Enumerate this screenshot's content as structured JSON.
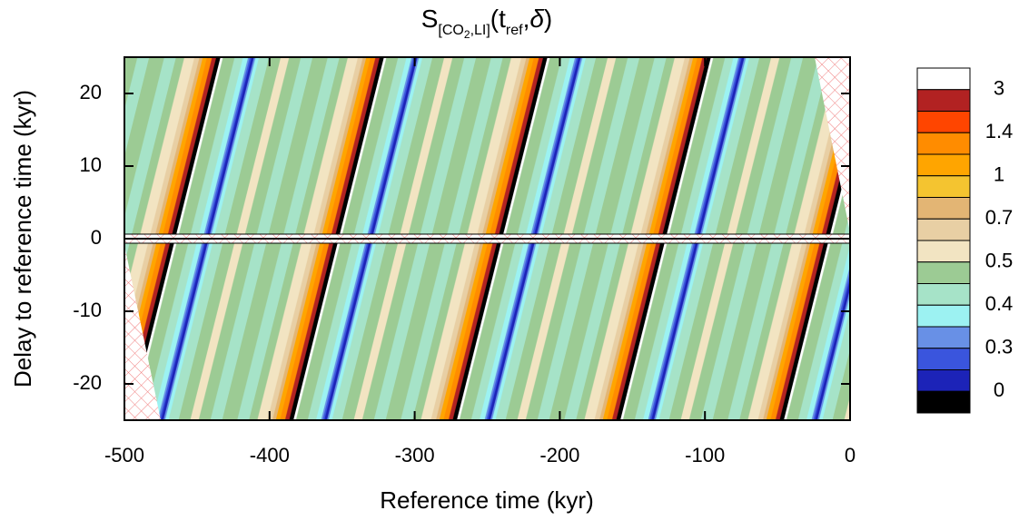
{
  "chart_data": {
    "type": "contour",
    "title": [
      "S",
      "[CO",
      "2",
      ",LI]",
      "(t",
      "ref",
      ",",
      "δ",
      ")"
    ],
    "x_label": "Reference time (kyr)",
    "y_label": "Delay to reference time (kyr)",
    "xlim": [
      -500,
      0
    ],
    "xticks": [
      -500,
      -400,
      -300,
      -200,
      -100,
      0
    ],
    "ylim": [
      -25,
      25
    ],
    "yticks": [
      -20,
      -10,
      0,
      10,
      20
    ],
    "colorbar": {
      "levels": [
        3,
        1.4,
        1,
        0.7,
        0.5,
        0.4,
        0.3,
        0
      ],
      "colors": [
        "#ffffff",
        "#b22222",
        "#ff4500",
        "#ff8c00",
        "#ffa500",
        "#f4c430",
        "#e3b574",
        "#e8cfa4",
        "#f2e4c2",
        "#9ccb94",
        "#a6e3c8",
        "#9cf2f2",
        "#6890e6",
        "#3a55dd",
        "#1c23b8",
        "#000000"
      ]
    }
  }
}
